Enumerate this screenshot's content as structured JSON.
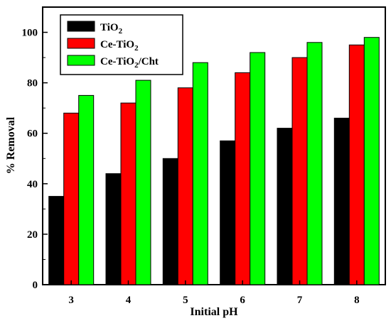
{
  "chart_data": {
    "type": "bar",
    "xlabel": "Initial pH",
    "ylabel": "% Removal",
    "categories": [
      "3",
      "4",
      "5",
      "6",
      "7",
      "8"
    ],
    "ylim": [
      0,
      110
    ],
    "yticks": [
      0,
      20,
      40,
      60,
      80,
      100
    ],
    "grid": false,
    "legend_position": "top-left",
    "series": [
      {
        "name_main": "TiO",
        "name_sub": "2",
        "name_tail": "",
        "color": "#000000",
        "values": [
          35,
          44,
          50,
          57,
          62,
          66
        ]
      },
      {
        "name_main": "Ce-TiO",
        "name_sub": "2",
        "name_tail": "",
        "color": "#ff0000",
        "values": [
          68,
          72,
          78,
          84,
          90,
          95
        ]
      },
      {
        "name_main": "Ce-TiO",
        "name_sub": "2",
        "name_tail": "/Cht",
        "color": "#00ff00",
        "values": [
          75,
          81,
          88,
          92,
          96,
          98
        ]
      }
    ]
  }
}
